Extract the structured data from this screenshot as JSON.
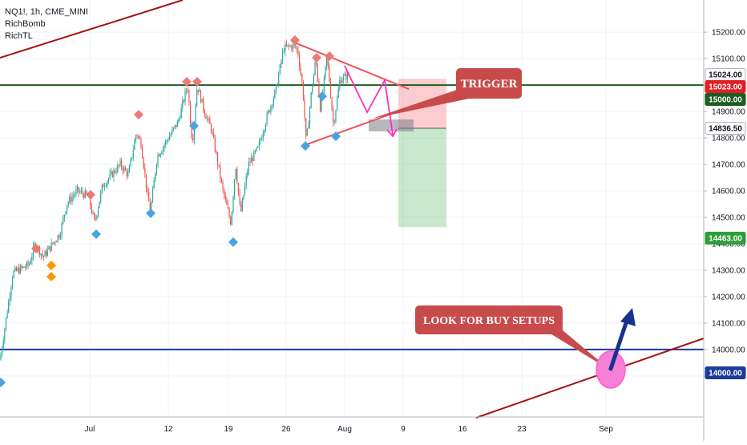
{
  "legend": {
    "symbol": "NQ1!, 1h, CME_MINI",
    "indicator1": "RichBomb",
    "indicator2": "RichTL"
  },
  "chart_data": {
    "type": "candlestick",
    "ylim": [
      13830,
      15255
    ],
    "y_ticks": [
      13900,
      14000,
      14100,
      14200,
      14300,
      14400,
      14500,
      14600,
      14700,
      14800,
      14900,
      15000,
      15100,
      15200
    ],
    "x_ticks": [
      "Jul",
      "12",
      "19",
      "26",
      "Aug",
      "9",
      "16",
      "23",
      "Sep"
    ],
    "grid": true,
    "colors": {
      "up": "#26a69a",
      "down": "#ef5350",
      "resistance": "#1b5e20",
      "support": "#1a3a9c",
      "trendline": "#a31515",
      "triangle": "#f0505a",
      "pivot_high": "#f07874",
      "pivot_low": "#4aa3df",
      "signal": "#ff9800",
      "callout": "#c84b4b",
      "projection": "#ff2fc0",
      "buy_circle": "#f77fd6",
      "buy_arrow": "#17318e"
    },
    "price_tags": [
      {
        "label": "15024.00",
        "value": 15024,
        "bg": "#ffffff",
        "fg": "#131722",
        "border": "#b2b5be"
      },
      {
        "label": "15023.00",
        "value": 15023,
        "bg": "#e31e24",
        "fg": "#ffffff"
      },
      {
        "label": "15000.00",
        "value": 15000,
        "bg": "#1b5e20",
        "fg": "#ffffff"
      },
      {
        "label": "14836.50",
        "value": 14836.5,
        "bg": "#ffffff",
        "fg": "#131722",
        "border": "#b2b5be"
      },
      {
        "label": "14463.00",
        "value": 14463,
        "bg": "#2e9e3a",
        "fg": "#ffffff"
      },
      {
        "label": "14000.00",
        "value": 14000,
        "bg": "#1a3a9c",
        "fg": "#ffffff"
      }
    ],
    "horizontal_lines": [
      {
        "name": "resistance",
        "value": 15000
      },
      {
        "name": "support",
        "value": 14000
      }
    ],
    "trade_box": {
      "entry": 14836.5,
      "stop": 15024,
      "target": 14463
    },
    "annotations": [
      {
        "name": "trigger",
        "text": "TRIGGER"
      },
      {
        "name": "buy-setups",
        "text": "LOOK FOR BUY SETUPS"
      }
    ],
    "keypoints": [
      [
        0,
        13960
      ],
      [
        16,
        14290
      ],
      [
        36,
        14320
      ],
      [
        44,
        14400
      ],
      [
        54,
        14350
      ],
      [
        75,
        14440
      ],
      [
        83,
        14550
      ],
      [
        96,
        14600
      ],
      [
        110,
        14580
      ],
      [
        118,
        14480
      ],
      [
        128,
        14620
      ],
      [
        150,
        14700
      ],
      [
        160,
        14660
      ],
      [
        170,
        14820
      ],
      [
        176,
        14780
      ],
      [
        184,
        14580
      ],
      [
        188,
        14530
      ],
      [
        196,
        14730
      ],
      [
        210,
        14800
      ],
      [
        222,
        14860
      ],
      [
        234,
        15000
      ],
      [
        240,
        14780
      ],
      [
        246,
        15000
      ],
      [
        255,
        14900
      ],
      [
        264,
        14830
      ],
      [
        278,
        14600
      ],
      [
        288,
        14480
      ],
      [
        294,
        14700
      ],
      [
        300,
        14510
      ],
      [
        310,
        14700
      ],
      [
        322,
        14760
      ],
      [
        332,
        14870
      ],
      [
        344,
        14980
      ],
      [
        354,
        15140
      ],
      [
        368,
        15150
      ],
      [
        372,
        15120
      ],
      [
        378,
        14980
      ],
      [
        382,
        14780
      ],
      [
        388,
        14960
      ],
      [
        394,
        15100
      ],
      [
        400,
        14900
      ],
      [
        408,
        15110
      ],
      [
        416,
        14850
      ],
      [
        424,
        15020
      ],
      [
        436,
        15040
      ]
    ]
  }
}
